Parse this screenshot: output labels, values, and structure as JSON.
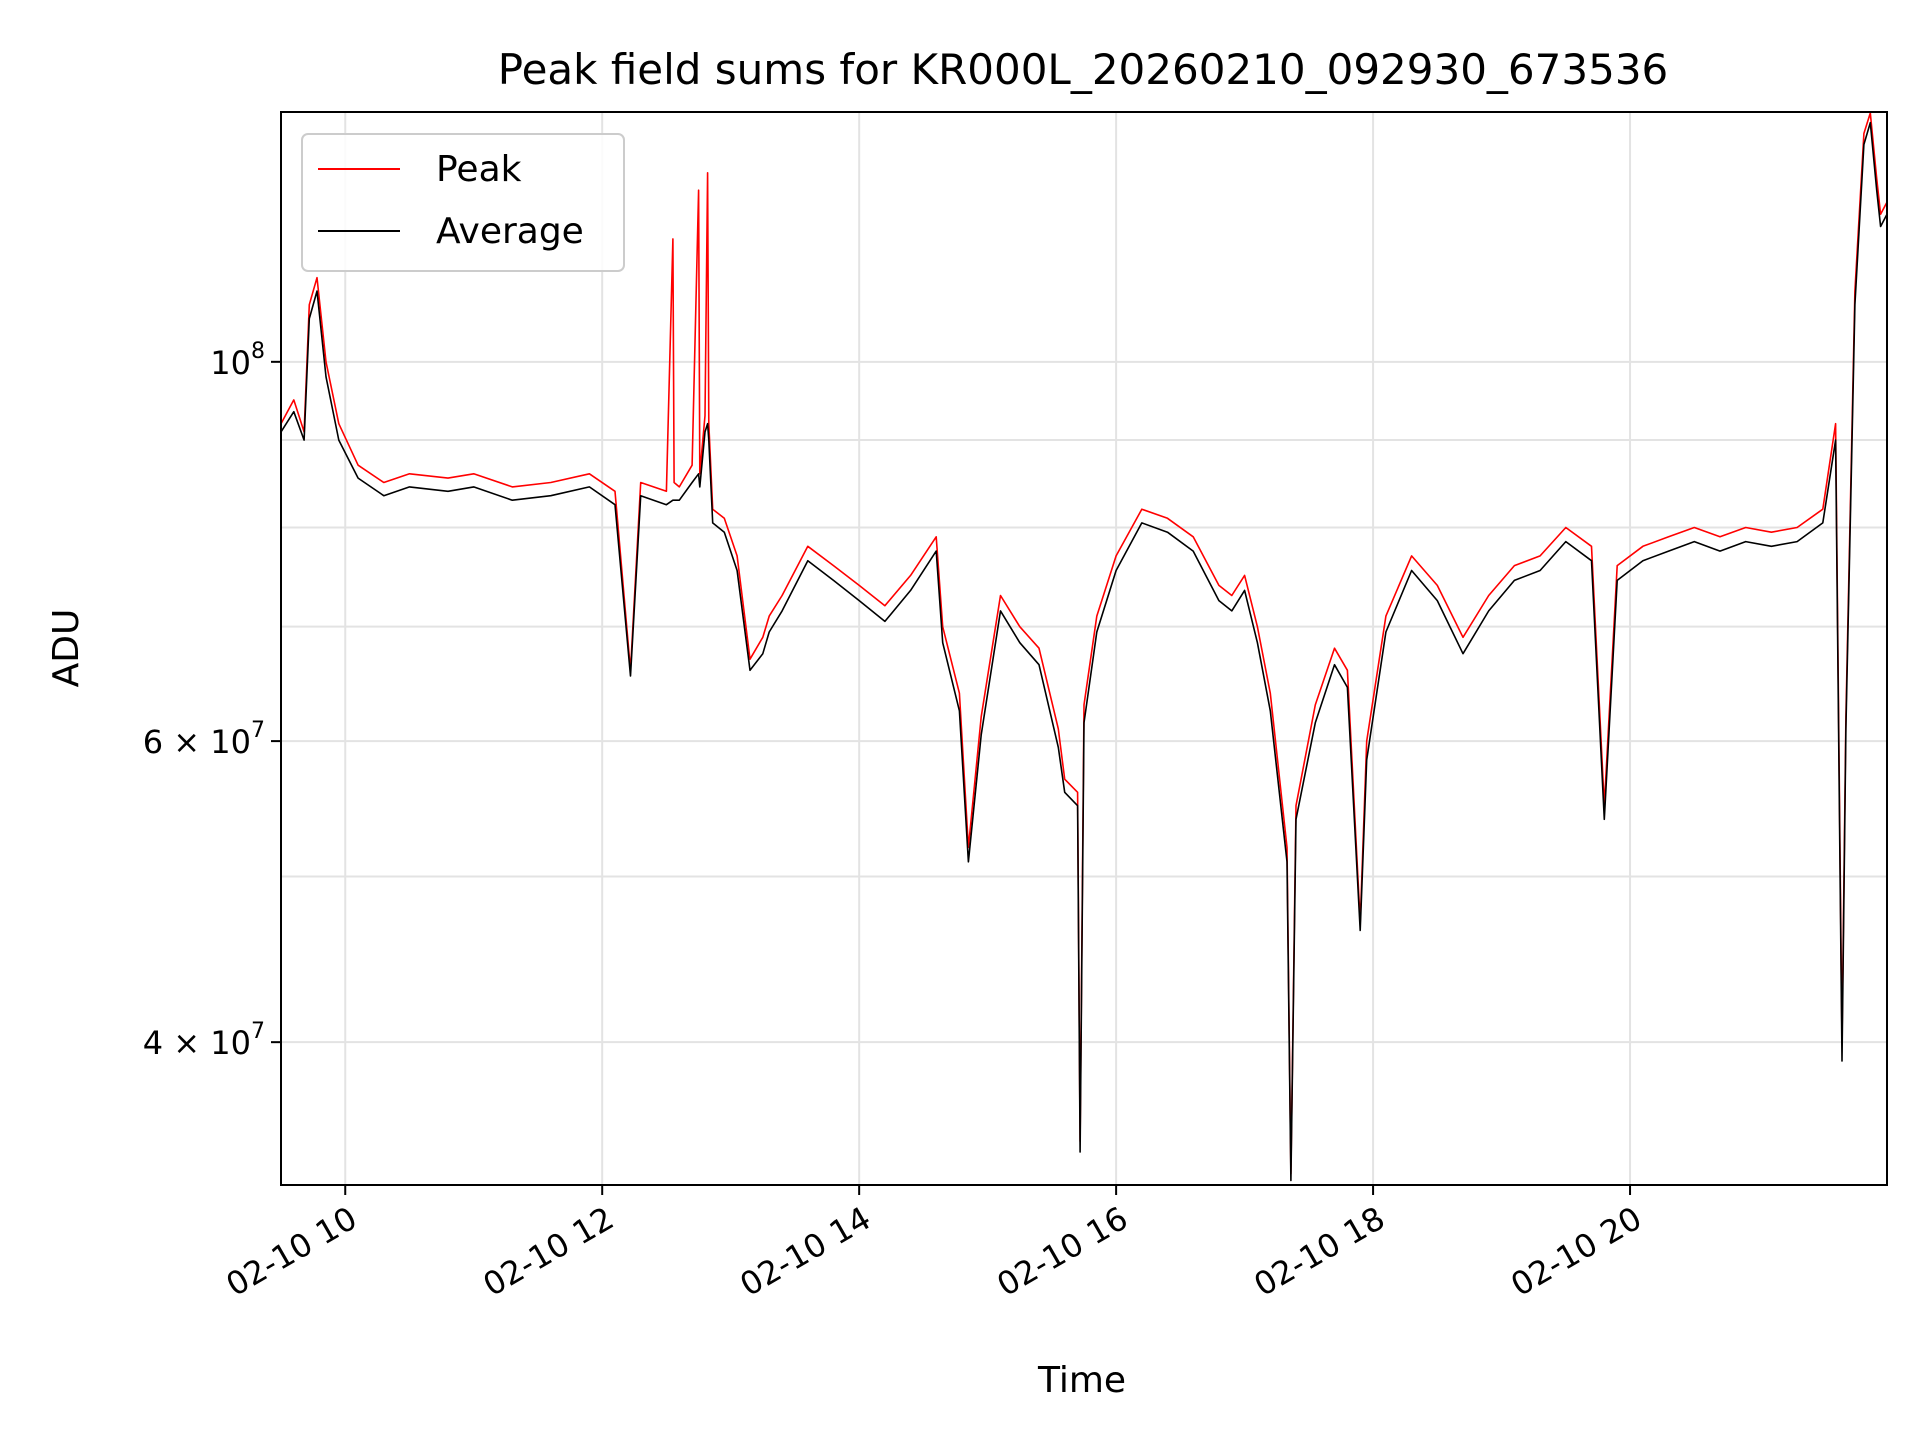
{
  "chart_data": {
    "type": "line",
    "title": "Peak field sums for KR000L_20260210_092930_673536",
    "xlabel": "Time",
    "ylabel": "ADU",
    "yscale": "log",
    "xlim": [
      9.5,
      22.0
    ],
    "ylim": [
      33000000,
      140000000
    ],
    "x_unit": "hours (02-10)",
    "x_ticks": [
      {
        "value": 10,
        "label": "02-10 10"
      },
      {
        "value": 12,
        "label": "02-10 12"
      },
      {
        "value": 14,
        "label": "02-10 14"
      },
      {
        "value": 16,
        "label": "02-10 16"
      },
      {
        "value": 18,
        "label": "02-10 18"
      },
      {
        "value": 20,
        "label": "02-10 20"
      }
    ],
    "y_ticks": [
      {
        "value": 100000000,
        "base": "10",
        "exponent": "8"
      },
      {
        "value": 60000000,
        "mantissa": "6",
        "base": "10",
        "exponent": "7"
      },
      {
        "value": 40000000,
        "mantissa": "4",
        "base": "10",
        "exponent": "7"
      }
    ],
    "y_minor_gridlines": [
      50000000,
      70000000,
      80000000,
      90000000
    ],
    "grid": true,
    "legend": {
      "position": "top-left",
      "entries": [
        {
          "name": "Peak",
          "color": "#ff0000"
        },
        {
          "name": "Average",
          "color": "#000000"
        }
      ]
    },
    "series": [
      {
        "name": "Peak",
        "color": "#ff0000",
        "x": [
          9.5,
          9.6,
          9.68,
          9.72,
          9.78,
          9.85,
          9.95,
          10.1,
          10.3,
          10.5,
          10.8,
          11.0,
          11.3,
          11.6,
          11.9,
          12.1,
          12.22,
          12.3,
          12.5,
          12.55,
          12.56,
          12.6,
          12.7,
          12.75,
          12.76,
          12.8,
          12.82,
          12.83,
          12.86,
          12.95,
          13.05,
          13.15,
          13.25,
          13.3,
          13.4,
          13.6,
          13.8,
          14.0,
          14.2,
          14.4,
          14.6,
          14.65,
          14.78,
          14.85,
          14.95,
          15.1,
          15.25,
          15.4,
          15.55,
          15.6,
          15.7,
          15.72,
          15.75,
          15.85,
          16.0,
          16.2,
          16.4,
          16.6,
          16.8,
          16.9,
          17.0,
          17.1,
          17.2,
          17.33,
          17.36,
          17.4,
          17.55,
          17.7,
          17.8,
          17.9,
          17.95,
          18.1,
          18.3,
          18.5,
          18.7,
          18.9,
          19.1,
          19.3,
          19.5,
          19.7,
          19.8,
          19.9,
          20.1,
          20.3,
          20.5,
          20.7,
          20.9,
          21.1,
          21.3,
          21.5,
          21.6,
          21.65,
          21.68,
          21.75,
          21.82,
          21.87,
          21.92,
          21.95,
          22.0
        ],
        "values": [
          92000000,
          95000000,
          91000000,
          108000000,
          112000000,
          100000000,
          92000000,
          87000000,
          85000000,
          86000000,
          85500000,
          86000000,
          84500000,
          85000000,
          86000000,
          84000000,
          66000000,
          85000000,
          84000000,
          118000000,
          85000000,
          84500000,
          87000000,
          126000000,
          86000000,
          93000000,
          129000000,
          92000000,
          82000000,
          81000000,
          77000000,
          67000000,
          69000000,
          71000000,
          73000000,
          78000000,
          76000000,
          74000000,
          72000000,
          75000000,
          79000000,
          70000000,
          64000000,
          52000000,
          62000000,
          73000000,
          70000000,
          68000000,
          61000000,
          57000000,
          56000000,
          35000000,
          63000000,
          71000000,
          77000000,
          82000000,
          81000000,
          79000000,
          74000000,
          73000000,
          75000000,
          70000000,
          64000000,
          52000000,
          33500000,
          55000000,
          63000000,
          68000000,
          66000000,
          47000000,
          60000000,
          71000000,
          77000000,
          74000000,
          69000000,
          73000000,
          76000000,
          77000000,
          80000000,
          78000000,
          55000000,
          76000000,
          78000000,
          79000000,
          80000000,
          79000000,
          80000000,
          79500000,
          80000000,
          82000000,
          92000000,
          40000000,
          62000000,
          110000000,
          136000000,
          141000000,
          128000000,
          122000000,
          124000000
        ]
      },
      {
        "name": "Average",
        "color": "#000000",
        "x": [
          9.5,
          9.6,
          9.68,
          9.72,
          9.78,
          9.85,
          9.95,
          10.1,
          10.3,
          10.5,
          10.8,
          11.0,
          11.3,
          11.6,
          11.9,
          12.1,
          12.22,
          12.3,
          12.5,
          12.55,
          12.56,
          12.6,
          12.7,
          12.75,
          12.76,
          12.8,
          12.82,
          12.83,
          12.86,
          12.95,
          13.05,
          13.15,
          13.25,
          13.3,
          13.4,
          13.6,
          13.8,
          14.0,
          14.2,
          14.4,
          14.6,
          14.65,
          14.78,
          14.85,
          14.95,
          15.1,
          15.25,
          15.4,
          15.55,
          15.6,
          15.7,
          15.72,
          15.75,
          15.85,
          16.0,
          16.2,
          16.4,
          16.6,
          16.8,
          16.9,
          17.0,
          17.1,
          17.2,
          17.33,
          17.36,
          17.4,
          17.55,
          17.7,
          17.8,
          17.9,
          17.95,
          18.1,
          18.3,
          18.5,
          18.7,
          18.9,
          19.1,
          19.3,
          19.5,
          19.7,
          19.8,
          19.9,
          20.1,
          20.3,
          20.5,
          20.7,
          20.9,
          21.1,
          21.3,
          21.5,
          21.6,
          21.65,
          21.68,
          21.75,
          21.82,
          21.87,
          21.92,
          21.95,
          22.0
        ],
        "values": [
          91000000,
          93500000,
          90000000,
          106000000,
          110000000,
          98000000,
          90000000,
          85500000,
          83500000,
          84500000,
          84000000,
          84500000,
          83000000,
          83500000,
          84500000,
          82500000,
          65500000,
          83500000,
          82500000,
          83000000,
          83000000,
          83000000,
          85000000,
          86000000,
          84500000,
          91000000,
          92000000,
          90000000,
          80500000,
          79500000,
          75500000,
          66000000,
          67500000,
          69500000,
          71500000,
          76500000,
          74500000,
          72500000,
          70500000,
          73500000,
          77500000,
          68500000,
          62500000,
          51000000,
          60500000,
          71500000,
          68500000,
          66500000,
          59500000,
          56000000,
          55000000,
          34500000,
          61500000,
          69500000,
          75500000,
          80500000,
          79500000,
          77500000,
          72500000,
          71500000,
          73500000,
          68500000,
          62500000,
          51000000,
          33200000,
          54000000,
          61500000,
          66500000,
          64500000,
          46500000,
          58500000,
          69500000,
          75500000,
          72500000,
          67500000,
          71500000,
          74500000,
          75500000,
          78500000,
          76500000,
          54000000,
          74500000,
          76500000,
          77500000,
          78500000,
          77500000,
          78500000,
          78000000,
          78500000,
          80500000,
          90000000,
          39000000,
          61000000,
          108000000,
          134000000,
          138000000,
          126000000,
          120000000,
          122000000
        ]
      }
    ]
  }
}
